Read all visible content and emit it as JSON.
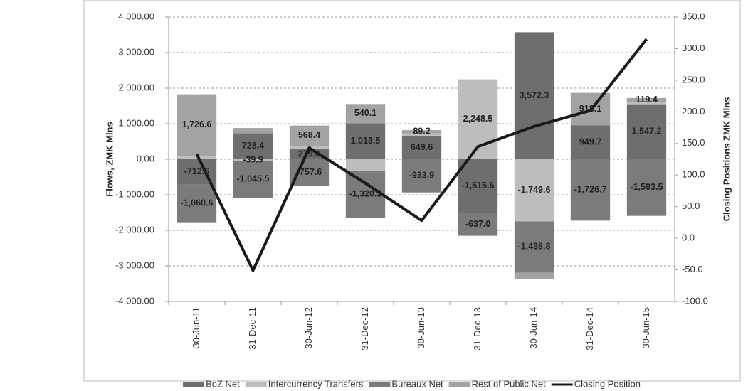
{
  "chart_data": {
    "type": "bar-line",
    "y_label": "Flows, ZMK Mlns",
    "y2_label": "Closing Positions ZMK Mlns",
    "categories": [
      "30-Jun-11",
      "31-Dec-11",
      "30-Jun-12",
      "31-Dec-12",
      "30-Jun-13",
      "31-Dec-13",
      "30-Jun-14",
      "31-Dec-14",
      "30-Jun-15"
    ],
    "series": [
      {
        "name": "BoZ Net",
        "type": "bar",
        "color": "#6e6e6e",
        "values": [
          -712.6,
          728.4,
          279.6,
          1013.5,
          649.6,
          -1515.6,
          3572.3,
          949.7,
          1547.2
        ],
        "value_labels": [
          "-712.6",
          "728.4",
          "279.6",
          "1,013.5",
          "649.6",
          "-1,515.6",
          "3,572.3",
          "949.7",
          "1,547.2"
        ]
      },
      {
        "name": "Intercurrency Transfers",
        "type": "bar",
        "color": "#bdbdbd",
        "values": [
          100,
          -39.9,
          100,
          -320,
          80,
          2248.5,
          -1749.6,
          null,
          55
        ],
        "value_labels": [
          null,
          "-39.9",
          null,
          null,
          null,
          "2,248.5",
          "-1,749.6",
          null,
          null
        ]
      },
      {
        "name": "Bureaux Net",
        "type": "bar",
        "color": "#7b7b7b",
        "values": [
          -1060.6,
          -1045.5,
          -757.6,
          -1320.2,
          -933.9,
          -637.0,
          -1438.8,
          -1726.7,
          -1593.5
        ],
        "value_labels": [
          "-1,060.6",
          "-1,045.5",
          "-757.6",
          "-1,320.2",
          "-933.9",
          "-637.0",
          "-1,438.8",
          "-1,726.7",
          "-1,593.5"
        ]
      },
      {
        "name": "Rest of Public Net",
        "type": "bar",
        "color": "#a3a3a3",
        "values": [
          1726.6,
          150,
          568.4,
          540.1,
          89.2,
          null,
          -180,
          918.1,
          119.4
        ],
        "value_labels": [
          "1,726.6",
          null,
          "568.4",
          "540.1",
          "89.2",
          null,
          null,
          "918.1",
          "119.4"
        ]
      },
      {
        "name": "Closing Position",
        "type": "line",
        "axis": "y2",
        "color": "#1a1a1a",
        "values": [
          133,
          -51,
          143,
          87,
          28,
          145,
          177,
          202,
          315
        ]
      }
    ],
    "ylim": [
      -4000,
      4000
    ],
    "yticks": [
      {
        "value": -4000,
        "label": "-4,000.00"
      },
      {
        "value": -3000,
        "label": "-3,000.00"
      },
      {
        "value": -2000,
        "label": "-2,000.00"
      },
      {
        "value": -1000,
        "label": "-1,000.00"
      },
      {
        "value": 0,
        "label": "0.00"
      },
      {
        "value": 1000,
        "label": "1,000.00"
      },
      {
        "value": 2000,
        "label": "2,000.00"
      },
      {
        "value": 3000,
        "label": "3,000.00"
      },
      {
        "value": 4000,
        "label": "4,000.00"
      }
    ],
    "y2lim": [
      -100,
      350
    ],
    "y2ticks": [
      {
        "value": -100,
        "label": "-100.0"
      },
      {
        "value": -50,
        "label": "-50.0"
      },
      {
        "value": 0,
        "label": "0.0"
      },
      {
        "value": 50,
        "label": "50.0"
      },
      {
        "value": 100,
        "label": "100.0"
      },
      {
        "value": 150,
        "label": "150.0"
      },
      {
        "value": 200,
        "label": "200.0"
      },
      {
        "value": 250,
        "label": "250.0"
      },
      {
        "value": 300,
        "label": "300.0"
      },
      {
        "value": 350,
        "label": "350.0"
      }
    ],
    "grid": true,
    "legend": "bottom"
  }
}
